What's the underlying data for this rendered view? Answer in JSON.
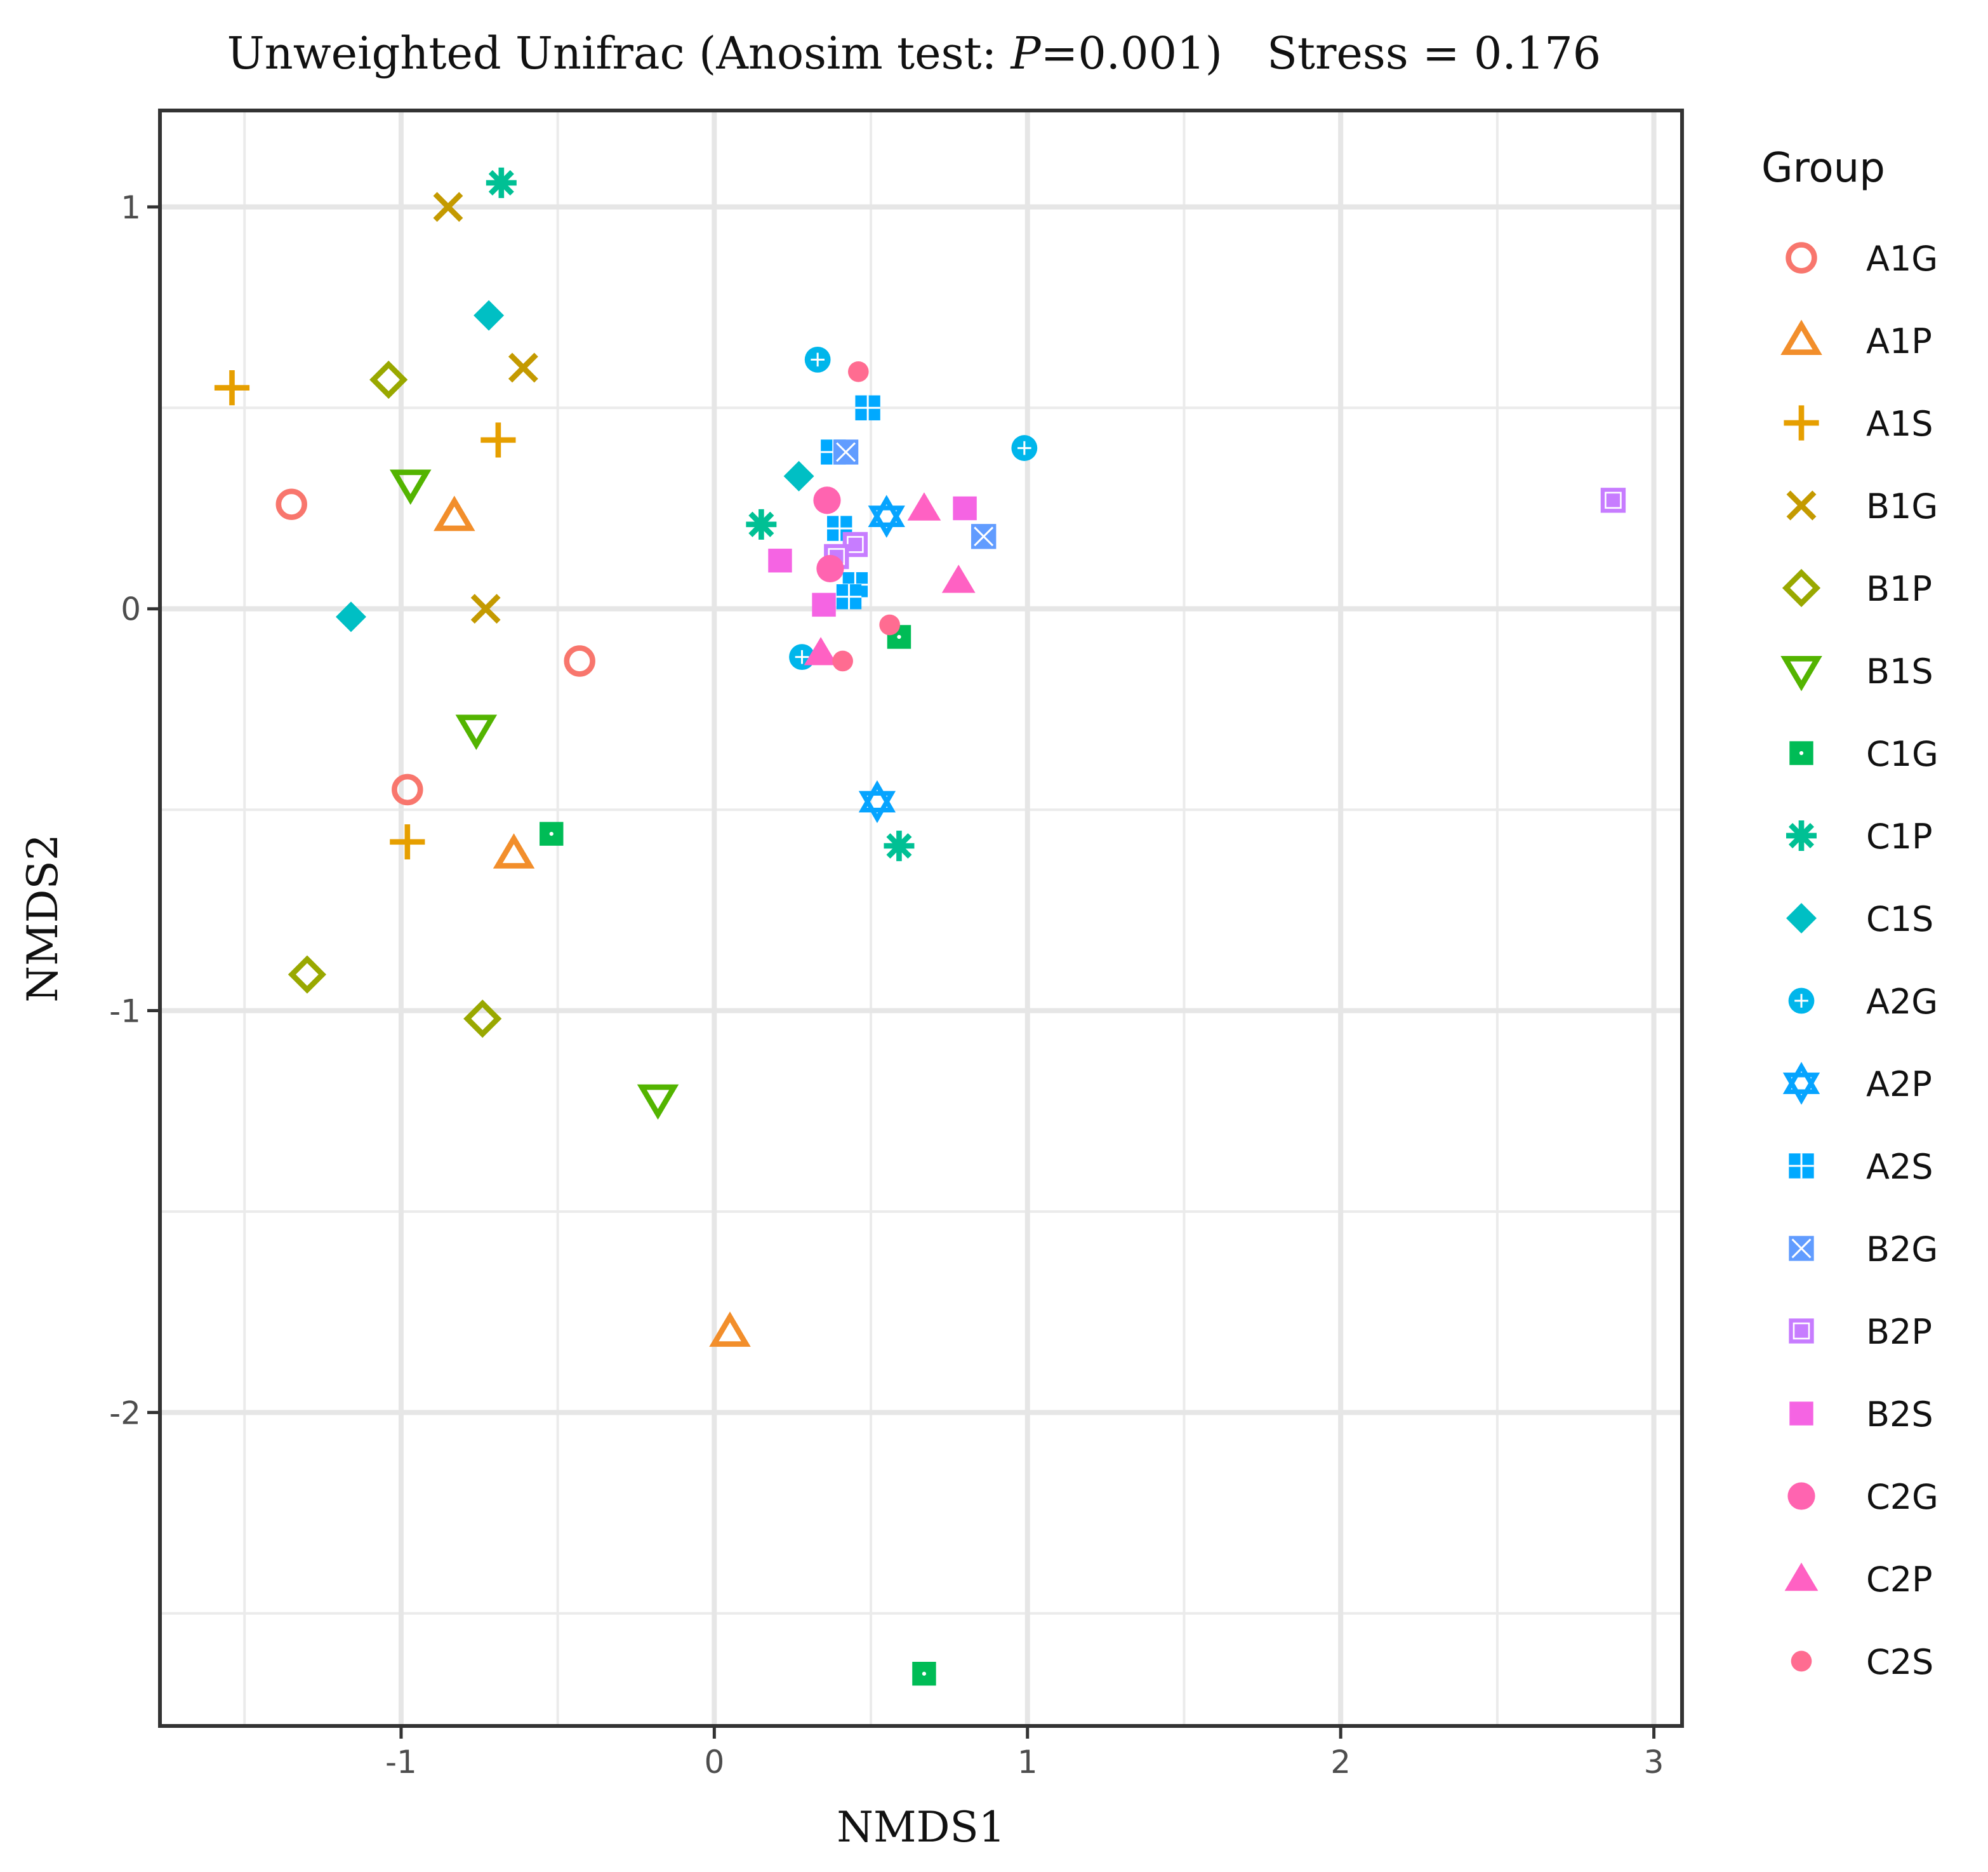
{
  "chart_data": {
    "type": "scatter",
    "title_prefix": "Unweighted Unifrac (Anosim test: ",
    "title_p_label": "P",
    "title_p_value": "=0.001)",
    "title_stress": "Stress = 0.176",
    "xlabel": "NMDS1",
    "ylabel": "NMDS2",
    "xlim": [
      -1.77,
      3.09
    ],
    "ylim": [
      -2.78,
      1.24
    ],
    "xticks": [
      -1,
      0,
      1,
      2,
      3
    ],
    "yticks": [
      -2,
      -1,
      0,
      1
    ],
    "xtick_labels": [
      "-1",
      "0",
      "1",
      "2",
      "3"
    ],
    "ytick_labels": [
      "-2",
      "-1",
      "0",
      "1"
    ],
    "grid": true,
    "legend_position": "right",
    "legend_title": "Group",
    "series": [
      {
        "name": "A1G",
        "shape": "circle-open",
        "color": "#F8766D",
        "points": [
          [
            -1.35,
            0.26
          ],
          [
            -0.43,
            -0.13
          ],
          [
            -0.98,
            -0.45
          ]
        ]
      },
      {
        "name": "A1P",
        "shape": "triangle-open",
        "color": "#F28E2B",
        "points": [
          [
            -0.83,
            0.23
          ],
          [
            -0.64,
            -0.61
          ],
          [
            0.05,
            -1.8
          ]
        ]
      },
      {
        "name": "A1S",
        "shape": "plus",
        "color": "#E69F00",
        "points": [
          [
            -1.54,
            0.55
          ],
          [
            -0.69,
            0.42
          ],
          [
            -0.98,
            -0.58
          ]
        ]
      },
      {
        "name": "B1G",
        "shape": "cross",
        "color": "#C49A00",
        "points": [
          [
            -0.85,
            1.0
          ],
          [
            -0.61,
            0.6
          ],
          [
            -0.73,
            0.0
          ]
        ]
      },
      {
        "name": "B1P",
        "shape": "diamond-open",
        "color": "#99A800",
        "points": [
          [
            -1.04,
            0.57
          ],
          [
            -1.3,
            -0.91
          ],
          [
            -0.74,
            -1.02
          ]
        ]
      },
      {
        "name": "B1S",
        "shape": "triangle-down-open",
        "color": "#53B400",
        "points": [
          [
            -0.97,
            0.31
          ],
          [
            -0.76,
            -0.3
          ],
          [
            -0.18,
            -1.22
          ]
        ]
      },
      {
        "name": "C1G",
        "shape": "square-cross",
        "color": "#00BC56",
        "points": [
          [
            -0.52,
            -0.56
          ],
          [
            0.59,
            -0.07
          ],
          [
            0.67,
            -2.65
          ]
        ]
      },
      {
        "name": "C1P",
        "shape": "asterisk",
        "color": "#00C094",
        "points": [
          [
            -0.68,
            1.06
          ],
          [
            0.15,
            0.21
          ],
          [
            0.59,
            -0.59
          ]
        ]
      },
      {
        "name": "C1S",
        "shape": "diamond-plus",
        "color": "#00BFC4",
        "points": [
          [
            -0.72,
            0.73
          ],
          [
            0.27,
            0.33
          ],
          [
            -1.16,
            -0.02
          ]
        ]
      },
      {
        "name": "A2G",
        "shape": "circle-plus",
        "color": "#00B6EB",
        "points": [
          [
            0.33,
            0.62
          ],
          [
            0.99,
            0.4
          ],
          [
            0.28,
            -0.12
          ]
        ]
      },
      {
        "name": "A2P",
        "shape": "star-of-david",
        "color": "#06A4FF",
        "points": [
          [
            0.55,
            0.23
          ],
          [
            0.52,
            -0.48
          ]
        ]
      },
      {
        "name": "A2S",
        "shape": "square-plus",
        "color": "#00A9FF",
        "points": [
          [
            0.49,
            0.5
          ],
          [
            0.38,
            0.39
          ],
          [
            0.4,
            0.2
          ],
          [
            0.45,
            0.06
          ],
          [
            0.43,
            0.03
          ]
        ]
      },
      {
        "name": "B2G",
        "shape": "square-cross-box",
        "color": "#619CFF",
        "points": [
          [
            0.42,
            0.39
          ],
          [
            0.86,
            0.18
          ]
        ]
      },
      {
        "name": "B2P",
        "shape": "square-x",
        "color": "#C77CFF",
        "points": [
          [
            2.87,
            0.27
          ],
          [
            0.45,
            0.16
          ],
          [
            0.39,
            0.13
          ]
        ]
      },
      {
        "name": "B2S",
        "shape": "square",
        "color": "#F564E3",
        "points": [
          [
            0.21,
            0.12
          ],
          [
            0.8,
            0.25
          ],
          [
            0.35,
            0.01
          ]
        ]
      },
      {
        "name": "C2G",
        "shape": "circle",
        "color": "#FF64B0",
        "points": [
          [
            0.36,
            0.27
          ],
          [
            0.37,
            0.1
          ]
        ]
      },
      {
        "name": "C2P",
        "shape": "triangle",
        "color": "#FF61C3",
        "points": [
          [
            0.67,
            0.25
          ],
          [
            0.78,
            0.07
          ],
          [
            0.34,
            -0.11
          ]
        ]
      },
      {
        "name": "C2S",
        "shape": "circle-small",
        "color": "#FF6C91",
        "points": [
          [
            0.46,
            0.59
          ],
          [
            0.56,
            -0.04
          ],
          [
            0.41,
            -0.13
          ]
        ]
      }
    ]
  }
}
